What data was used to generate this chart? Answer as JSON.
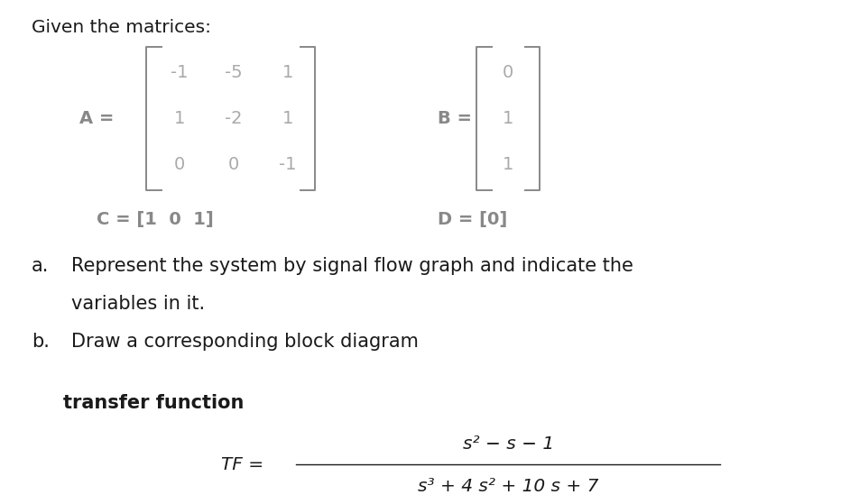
{
  "bg_color": "#ffffff",
  "text_color": "#1a1a1a",
  "matrix_color": "#aaaaaa",
  "label_color": "#888888",
  "title": "Given the matrices:",
  "title_fs": 14.5,
  "matrix_fs": 14,
  "body_fs": 15,
  "tf_fs": 14.5,
  "A_rows": [
    [
      "-1",
      "-5",
      "1"
    ],
    [
      "1",
      "-2",
      "1"
    ],
    [
      "0",
      "0",
      "-1"
    ]
  ],
  "B_rows": [
    "0",
    "1",
    "1"
  ],
  "C_text": "C = [1  0  1]",
  "D_text": "D = [0]",
  "part_a_label": "a.",
  "part_a_text": "Represent the system by signal flow graph and indicate the",
  "part_a_text2": "variables in it.",
  "part_b_label": "b.",
  "part_b_text": "Draw a corresponding block diagram",
  "tf_section": "transfer function",
  "tf_eq": "TF =",
  "tf_num": "s² − s − 1",
  "tf_den": "s³ + 4 s² + 10 s + 7"
}
